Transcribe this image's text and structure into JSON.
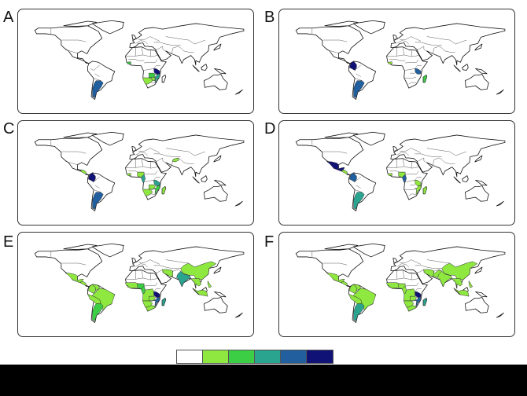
{
  "legend": {
    "colors": [
      "#ffffff",
      "#8ee83f",
      "#3ccf45",
      "#2aa38f",
      "#215f9e",
      "#111276"
    ]
  },
  "panels": [
    {
      "label": "A",
      "highlights": [
        {
          "region": "argentina",
          "level": 4
        },
        {
          "region": "tanzania",
          "level": 5
        },
        {
          "region": "mozambique",
          "level": 3
        },
        {
          "region": "zambia",
          "level": 2
        },
        {
          "region": "namibia_botswana",
          "level": 1
        },
        {
          "region": "zimbabwe",
          "level": 1
        },
        {
          "region": "west_africa",
          "level": 2
        }
      ]
    },
    {
      "label": "B",
      "highlights": [
        {
          "region": "colombia",
          "level": 5
        },
        {
          "region": "argentina",
          "level": 4
        },
        {
          "region": "tanzania",
          "level": 4
        },
        {
          "region": "madagascar",
          "level": 2
        },
        {
          "region": "west_africa",
          "level": 1
        }
      ]
    },
    {
      "label": "C",
      "highlights": [
        {
          "region": "colombia",
          "level": 5
        },
        {
          "region": "argentina",
          "level": 4
        },
        {
          "region": "central_america",
          "level": 1
        },
        {
          "region": "west_africa",
          "level": 1
        },
        {
          "region": "nigeria",
          "level": 1
        },
        {
          "region": "cameroon",
          "level": 3
        },
        {
          "region": "tanzania",
          "level": 3
        },
        {
          "region": "mozambique",
          "level": 2
        },
        {
          "region": "namibia_botswana",
          "level": 1
        },
        {
          "region": "zambia",
          "level": 1
        },
        {
          "region": "madagascar",
          "level": 1
        },
        {
          "region": "central_asia",
          "level": 1
        }
      ]
    },
    {
      "label": "D",
      "highlights": [
        {
          "region": "mexico",
          "level": 5
        },
        {
          "region": "colombia",
          "level": 4
        },
        {
          "region": "central_america",
          "level": 1
        },
        {
          "region": "argentina",
          "level": 3
        },
        {
          "region": "west_africa",
          "level": 1
        },
        {
          "region": "nigeria",
          "level": 1
        },
        {
          "region": "cameroon",
          "level": 4
        },
        {
          "region": "tanzania",
          "level": 1
        },
        {
          "region": "mozambique",
          "level": 1
        },
        {
          "region": "madagascar",
          "level": 1
        }
      ]
    },
    {
      "label": "E",
      "highlights": [
        {
          "region": "mexico",
          "level": 1
        },
        {
          "region": "central_america",
          "level": 1
        },
        {
          "region": "colombia",
          "level": 1
        },
        {
          "region": "venezuela",
          "level": 1
        },
        {
          "region": "brazil",
          "level": 1
        },
        {
          "region": "andes",
          "level": 1
        },
        {
          "region": "argentina",
          "level": 2
        },
        {
          "region": "west_africa",
          "level": 1
        },
        {
          "region": "sahel",
          "level": 1
        },
        {
          "region": "nigeria",
          "level": 2
        },
        {
          "region": "cameroon",
          "level": 2
        },
        {
          "region": "angola_drc",
          "level": 1
        },
        {
          "region": "zambia",
          "level": 1
        },
        {
          "region": "namibia_botswana",
          "level": 1
        },
        {
          "region": "south_africa",
          "level": 1
        },
        {
          "region": "tanzania",
          "level": 5
        },
        {
          "region": "mozambique",
          "level": 4
        },
        {
          "region": "madagascar",
          "level": 3
        },
        {
          "region": "iran",
          "level": 1
        },
        {
          "region": "india",
          "level": 3
        },
        {
          "region": "china",
          "level": 1
        },
        {
          "region": "se_asia",
          "level": 1
        },
        {
          "region": "indonesia",
          "level": 1
        },
        {
          "region": "philippines",
          "level": 1
        }
      ]
    },
    {
      "label": "F",
      "highlights": [
        {
          "region": "mexico",
          "level": 1
        },
        {
          "region": "central_america",
          "level": 1
        },
        {
          "region": "colombia",
          "level": 1
        },
        {
          "region": "venezuela",
          "level": 1
        },
        {
          "region": "brazil",
          "level": 1
        },
        {
          "region": "andes",
          "level": 1
        },
        {
          "region": "argentina",
          "level": 3
        },
        {
          "region": "west_africa",
          "level": 1
        },
        {
          "region": "sahel",
          "level": 1
        },
        {
          "region": "nigeria",
          "level": 1
        },
        {
          "region": "cameroon",
          "level": 1
        },
        {
          "region": "angola_drc",
          "level": 1
        },
        {
          "region": "zambia",
          "level": 1
        },
        {
          "region": "namibia_botswana",
          "level": 1
        },
        {
          "region": "south_africa",
          "level": 1
        },
        {
          "region": "tanzania",
          "level": 5
        },
        {
          "region": "mozambique",
          "level": 4
        },
        {
          "region": "madagascar",
          "level": 3
        },
        {
          "region": "iran",
          "level": 1
        },
        {
          "region": "pakistan",
          "level": 1
        },
        {
          "region": "india",
          "level": 1
        },
        {
          "region": "china",
          "level": 1
        },
        {
          "region": "se_asia",
          "level": 1
        },
        {
          "region": "indonesia",
          "level": 1
        },
        {
          "region": "philippines",
          "level": 1
        }
      ]
    }
  ]
}
